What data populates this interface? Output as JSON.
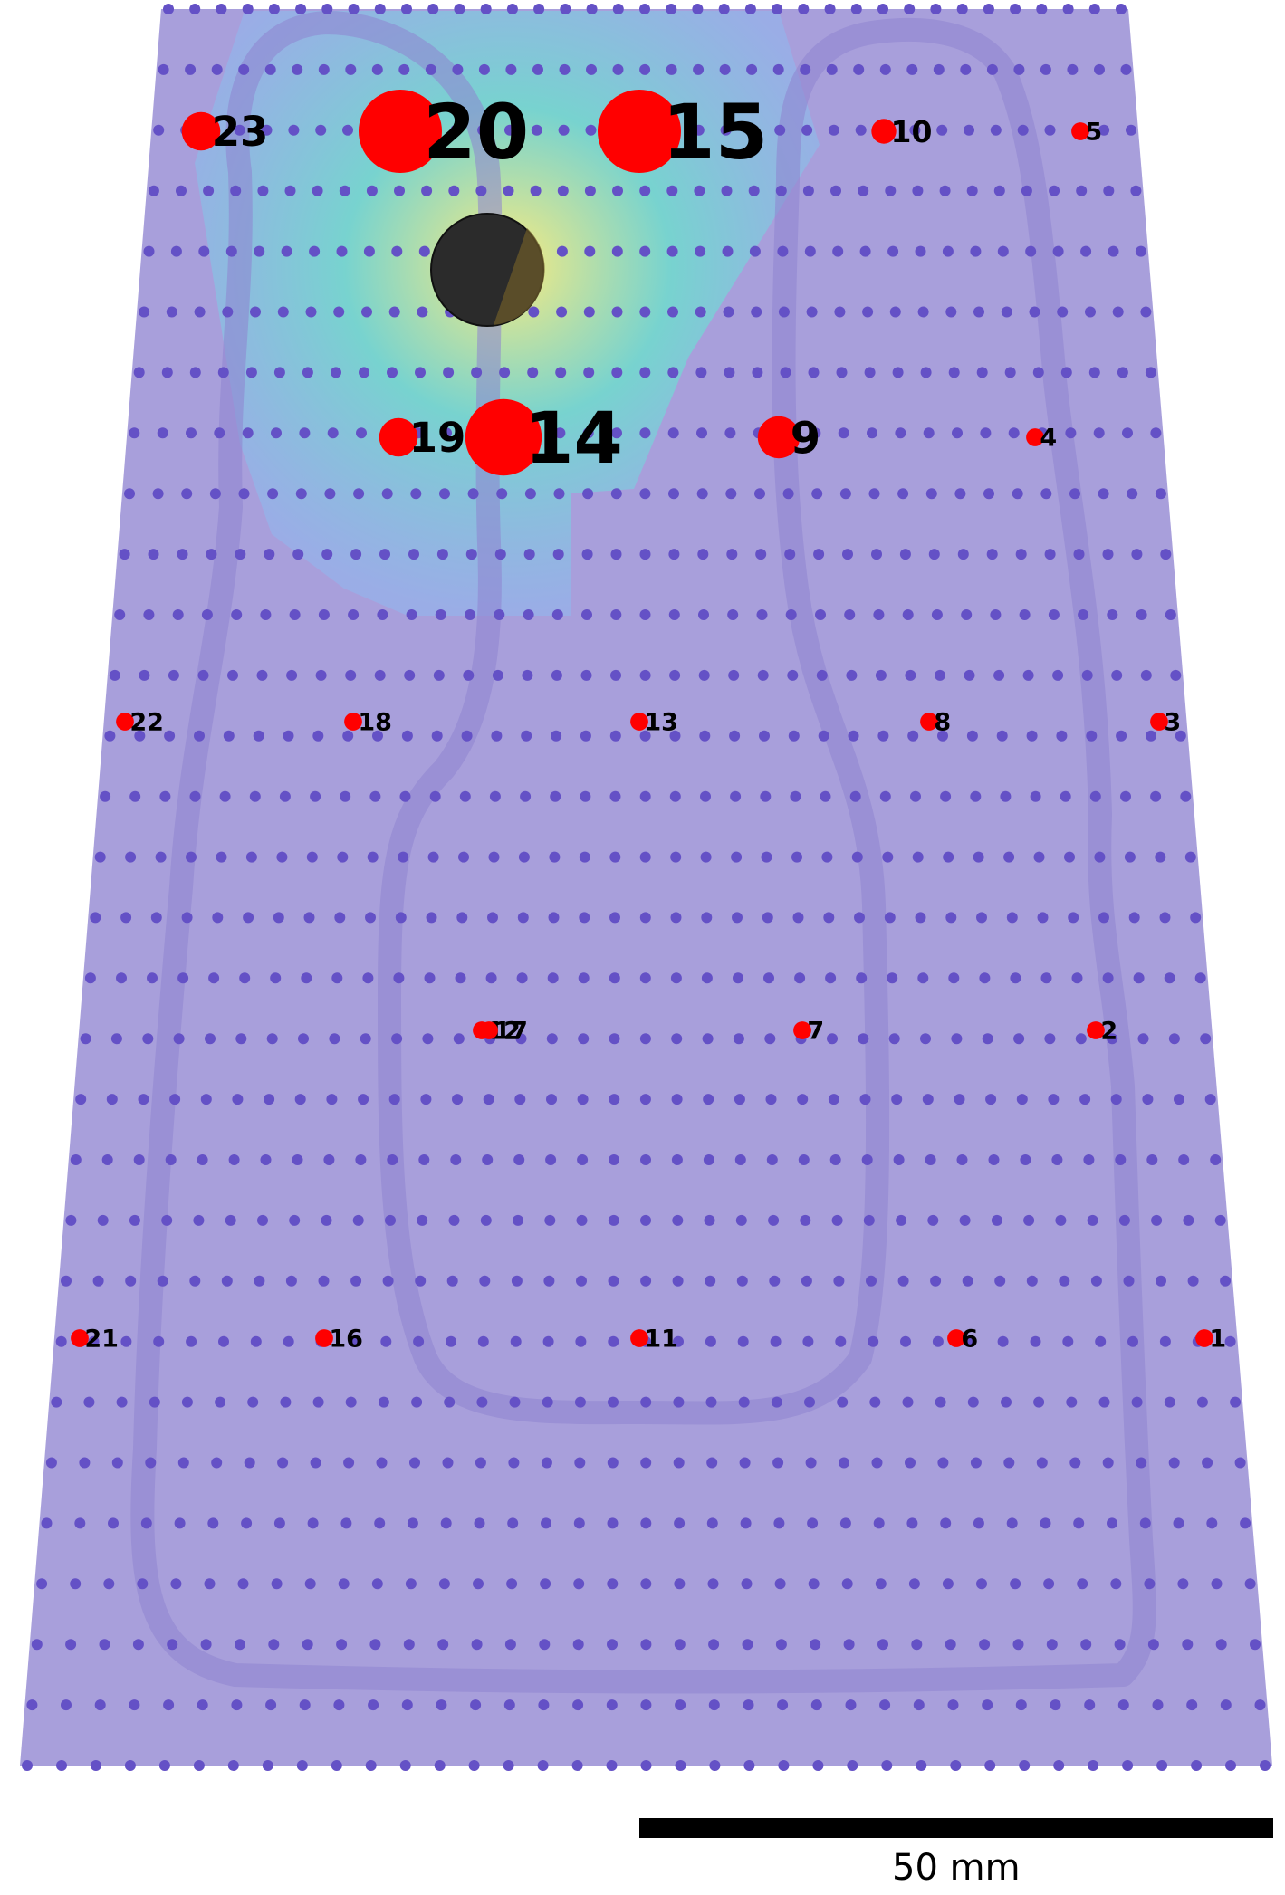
{
  "colors": {
    "background": "#ffffff",
    "field": "#a89fdb",
    "grid_dot": "#6451c6",
    "electrode": "#ff0000",
    "stimulus": "#2b2b2b",
    "heat_low": "#8fb8f0",
    "heat_mid": "#6fdccd",
    "heat_high": "#ffef7a",
    "scale_bar": "#000000"
  },
  "electrodes": [
    {
      "id": "1",
      "col": 4,
      "row": 4,
      "level": 0.05
    },
    {
      "id": "2",
      "col": 4,
      "row": 3,
      "level": 0.05
    },
    {
      "id": "3",
      "col": 4,
      "row": 2,
      "level": 0.05
    },
    {
      "id": "4",
      "col": 4,
      "row": 1,
      "level": 0.05
    },
    {
      "id": "5",
      "col": 4,
      "row": 0,
      "level": 0.05
    },
    {
      "id": "6",
      "col": 3,
      "row": 4,
      "level": 0.05
    },
    {
      "id": "7",
      "col": 3,
      "row": 3,
      "level": 0.05
    },
    {
      "id": "8",
      "col": 3,
      "row": 2,
      "level": 0.05
    },
    {
      "id": "9",
      "col": 3,
      "row": 1,
      "level": 0.4
    },
    {
      "id": "10",
      "col": 3,
      "row": 0,
      "level": 0.15
    },
    {
      "id": "11",
      "col": 2,
      "row": 4,
      "level": 0.05
    },
    {
      "id": "12",
      "col": 2,
      "row": 3,
      "level": 0.05
    },
    {
      "id": "13",
      "col": 2,
      "row": 2,
      "level": 0.05
    },
    {
      "id": "14",
      "col": 2,
      "row": 1,
      "level": 0.9
    },
    {
      "id": "15",
      "col": 2,
      "row": 0,
      "level": 1.0
    },
    {
      "id": "16",
      "col": 1,
      "row": 4,
      "level": 0.05
    },
    {
      "id": "17",
      "col": 1,
      "row": 3,
      "level": 0.05
    },
    {
      "id": "18",
      "col": 1,
      "row": 2,
      "level": 0.05
    },
    {
      "id": "19",
      "col": 1,
      "row": 1,
      "level": 0.35
    },
    {
      "id": "20",
      "col": 1,
      "row": 0,
      "level": 1.0
    },
    {
      "id": "21",
      "col": 0,
      "row": 4,
      "level": 0.05
    },
    {
      "id": "22",
      "col": 0,
      "row": 2,
      "level": 0.05
    },
    {
      "id": "23",
      "col": 0,
      "row": 0,
      "level": 0.35
    }
  ],
  "scale_bar": {
    "label": "50 mm"
  }
}
